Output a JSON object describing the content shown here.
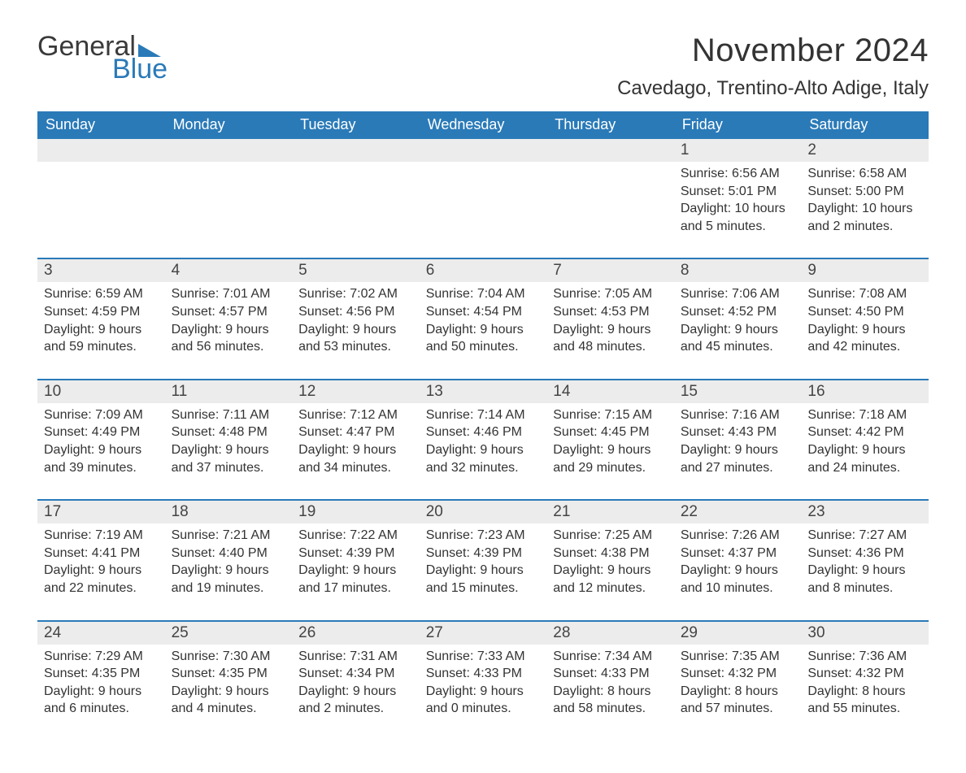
{
  "logo": {
    "word1": "General",
    "word2": "Blue",
    "triangle_color": "#2a7ab8",
    "word1_color": "#3a3a3a"
  },
  "header": {
    "month_title": "November 2024",
    "location": "Cavedago, Trentino-Alto Adige, Italy",
    "title_fontsize": 40,
    "location_fontsize": 24,
    "title_color": "#333333"
  },
  "calendar": {
    "header_bg": "#2a7ab8",
    "header_fg": "#ffffff",
    "row_border_color": "#2a7ab8",
    "daynum_bg": "#ececec",
    "text_color": "#333333",
    "body_fontsize": 16,
    "header_fontsize": 18,
    "days_of_week": [
      "Sunday",
      "Monday",
      "Tuesday",
      "Wednesday",
      "Thursday",
      "Friday",
      "Saturday"
    ],
    "weeks": [
      [
        null,
        null,
        null,
        null,
        null,
        {
          "n": "1",
          "sunrise": "6:56 AM",
          "sunset": "5:01 PM",
          "daylight": "10 hours and 5 minutes."
        },
        {
          "n": "2",
          "sunrise": "6:58 AM",
          "sunset": "5:00 PM",
          "daylight": "10 hours and 2 minutes."
        }
      ],
      [
        {
          "n": "3",
          "sunrise": "6:59 AM",
          "sunset": "4:59 PM",
          "daylight": "9 hours and 59 minutes."
        },
        {
          "n": "4",
          "sunrise": "7:01 AM",
          "sunset": "4:57 PM",
          "daylight": "9 hours and 56 minutes."
        },
        {
          "n": "5",
          "sunrise": "7:02 AM",
          "sunset": "4:56 PM",
          "daylight": "9 hours and 53 minutes."
        },
        {
          "n": "6",
          "sunrise": "7:04 AM",
          "sunset": "4:54 PM",
          "daylight": "9 hours and 50 minutes."
        },
        {
          "n": "7",
          "sunrise": "7:05 AM",
          "sunset": "4:53 PM",
          "daylight": "9 hours and 48 minutes."
        },
        {
          "n": "8",
          "sunrise": "7:06 AM",
          "sunset": "4:52 PM",
          "daylight": "9 hours and 45 minutes."
        },
        {
          "n": "9",
          "sunrise": "7:08 AM",
          "sunset": "4:50 PM",
          "daylight": "9 hours and 42 minutes."
        }
      ],
      [
        {
          "n": "10",
          "sunrise": "7:09 AM",
          "sunset": "4:49 PM",
          "daylight": "9 hours and 39 minutes."
        },
        {
          "n": "11",
          "sunrise": "7:11 AM",
          "sunset": "4:48 PM",
          "daylight": "9 hours and 37 minutes."
        },
        {
          "n": "12",
          "sunrise": "7:12 AM",
          "sunset": "4:47 PM",
          "daylight": "9 hours and 34 minutes."
        },
        {
          "n": "13",
          "sunrise": "7:14 AM",
          "sunset": "4:46 PM",
          "daylight": "9 hours and 32 minutes."
        },
        {
          "n": "14",
          "sunrise": "7:15 AM",
          "sunset": "4:45 PM",
          "daylight": "9 hours and 29 minutes."
        },
        {
          "n": "15",
          "sunrise": "7:16 AM",
          "sunset": "4:43 PM",
          "daylight": "9 hours and 27 minutes."
        },
        {
          "n": "16",
          "sunrise": "7:18 AM",
          "sunset": "4:42 PM",
          "daylight": "9 hours and 24 minutes."
        }
      ],
      [
        {
          "n": "17",
          "sunrise": "7:19 AM",
          "sunset": "4:41 PM",
          "daylight": "9 hours and 22 minutes."
        },
        {
          "n": "18",
          "sunrise": "7:21 AM",
          "sunset": "4:40 PM",
          "daylight": "9 hours and 19 minutes."
        },
        {
          "n": "19",
          "sunrise": "7:22 AM",
          "sunset": "4:39 PM",
          "daylight": "9 hours and 17 minutes."
        },
        {
          "n": "20",
          "sunrise": "7:23 AM",
          "sunset": "4:39 PM",
          "daylight": "9 hours and 15 minutes."
        },
        {
          "n": "21",
          "sunrise": "7:25 AM",
          "sunset": "4:38 PM",
          "daylight": "9 hours and 12 minutes."
        },
        {
          "n": "22",
          "sunrise": "7:26 AM",
          "sunset": "4:37 PM",
          "daylight": "9 hours and 10 minutes."
        },
        {
          "n": "23",
          "sunrise": "7:27 AM",
          "sunset": "4:36 PM",
          "daylight": "9 hours and 8 minutes."
        }
      ],
      [
        {
          "n": "24",
          "sunrise": "7:29 AM",
          "sunset": "4:35 PM",
          "daylight": "9 hours and 6 minutes."
        },
        {
          "n": "25",
          "sunrise": "7:30 AM",
          "sunset": "4:35 PM",
          "daylight": "9 hours and 4 minutes."
        },
        {
          "n": "26",
          "sunrise": "7:31 AM",
          "sunset": "4:34 PM",
          "daylight": "9 hours and 2 minutes."
        },
        {
          "n": "27",
          "sunrise": "7:33 AM",
          "sunset": "4:33 PM",
          "daylight": "9 hours and 0 minutes."
        },
        {
          "n": "28",
          "sunrise": "7:34 AM",
          "sunset": "4:33 PM",
          "daylight": "8 hours and 58 minutes."
        },
        {
          "n": "29",
          "sunrise": "7:35 AM",
          "sunset": "4:32 PM",
          "daylight": "8 hours and 57 minutes."
        },
        {
          "n": "30",
          "sunrise": "7:36 AM",
          "sunset": "4:32 PM",
          "daylight": "8 hours and 55 minutes."
        }
      ]
    ],
    "labels": {
      "sunrise": "Sunrise: ",
      "sunset": "Sunset: ",
      "daylight": "Daylight: "
    }
  }
}
